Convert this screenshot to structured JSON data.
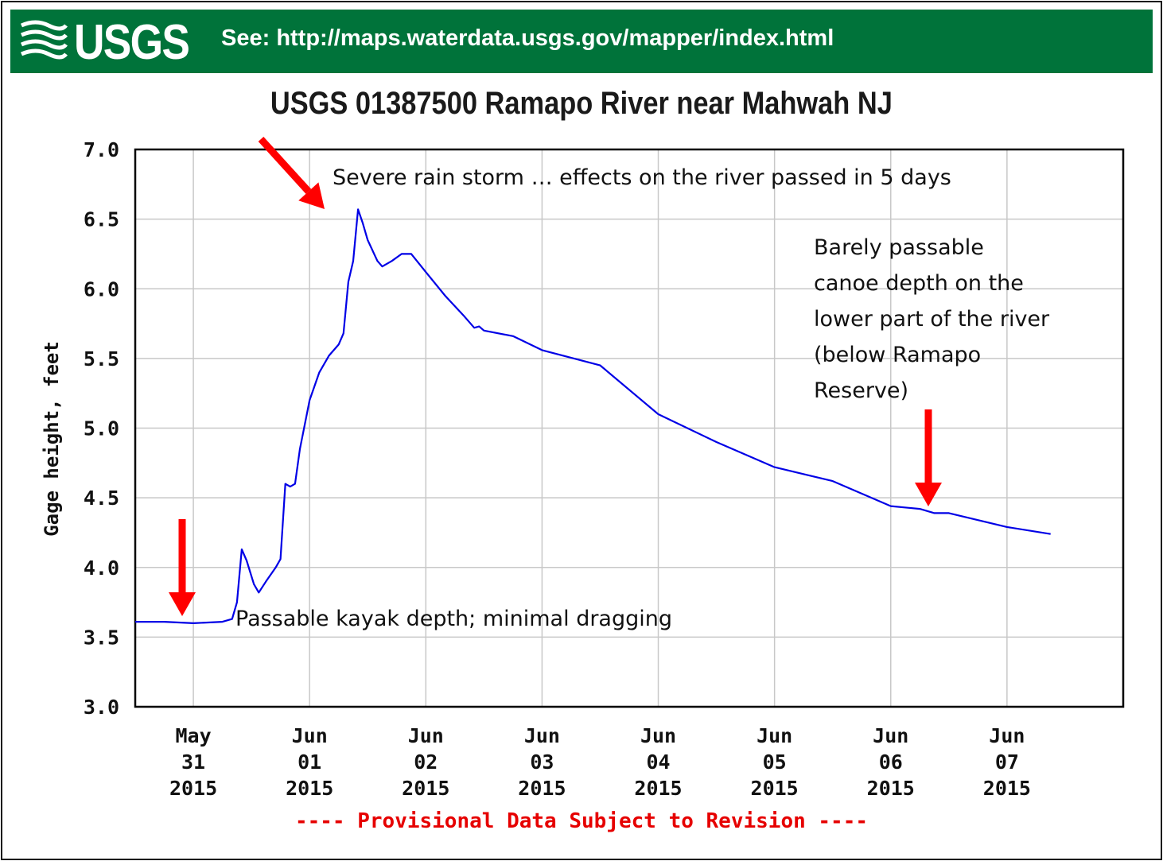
{
  "banner": {
    "logo_text": "USGS",
    "link_text": "See: http://maps.waterdata.usgs.gov/mapper/index.html",
    "background_color": "#00733a"
  },
  "annotations": {
    "storm": "Severe rain storm … effects on the river passed in 5 days",
    "kayak": "Passable kayak depth; minimal dragging",
    "canoe": "Barely passable canoe depth on the lower part of the river (below Ramapo Reserve)"
  },
  "footer": {
    "provisional": "---- Provisional Data Subject to Revision ----",
    "color": "#e60000"
  },
  "chart_data": {
    "type": "line",
    "title": "USGS 01387500 Ramapo River near Mahwah NJ",
    "xlabel": "",
    "ylabel": "Gage height, feet",
    "ylim": [
      3.0,
      7.0
    ],
    "xlim": [
      "2015-05-30T12:00",
      "2015-06-08T00:00"
    ],
    "grid": true,
    "y_ticks": [
      "3.0",
      "3.5",
      "4.0",
      "4.5",
      "5.0",
      "5.5",
      "6.0",
      "6.5",
      "7.0"
    ],
    "x_ticks": [
      {
        "date": "2015-05-31T00:00",
        "lines": [
          "May",
          "31",
          "2015"
        ]
      },
      {
        "date": "2015-06-01T00:00",
        "lines": [
          "Jun",
          "01",
          "2015"
        ]
      },
      {
        "date": "2015-06-02T00:00",
        "lines": [
          "Jun",
          "02",
          "2015"
        ]
      },
      {
        "date": "2015-06-03T00:00",
        "lines": [
          "Jun",
          "03",
          "2015"
        ]
      },
      {
        "date": "2015-06-04T00:00",
        "lines": [
          "Jun",
          "04",
          "2015"
        ]
      },
      {
        "date": "2015-06-05T00:00",
        "lines": [
          "Jun",
          "05",
          "2015"
        ]
      },
      {
        "date": "2015-06-06T00:00",
        "lines": [
          "Jun",
          "06",
          "2015"
        ]
      },
      {
        "date": "2015-06-07T00:00",
        "lines": [
          "Jun",
          "07",
          "2015"
        ]
      }
    ],
    "series": [
      {
        "color": "#0000e6",
        "points": [
          [
            "2015-05-30T12:00",
            3.61
          ],
          [
            "2015-05-30T18:00",
            3.61
          ],
          [
            "2015-05-31T00:00",
            3.6
          ],
          [
            "2015-05-31T06:00",
            3.61
          ],
          [
            "2015-05-31T08:00",
            3.63
          ],
          [
            "2015-05-31T09:00",
            3.75
          ],
          [
            "2015-05-31T10:00",
            4.13
          ],
          [
            "2015-05-31T11:00",
            4.05
          ],
          [
            "2015-05-31T12:30",
            3.88
          ],
          [
            "2015-05-31T13:30",
            3.82
          ],
          [
            "2015-05-31T15:00",
            3.9
          ],
          [
            "2015-05-31T17:00",
            4.0
          ],
          [
            "2015-05-31T18:00",
            4.06
          ],
          [
            "2015-05-31T19:00",
            4.6
          ],
          [
            "2015-05-31T20:00",
            4.58
          ],
          [
            "2015-05-31T21:00",
            4.6
          ],
          [
            "2015-05-31T22:00",
            4.85
          ],
          [
            "2015-06-01T00:00",
            5.2
          ],
          [
            "2015-06-01T02:00",
            5.4
          ],
          [
            "2015-06-01T04:00",
            5.52
          ],
          [
            "2015-06-01T06:00",
            5.6
          ],
          [
            "2015-06-01T07:00",
            5.68
          ],
          [
            "2015-06-01T08:00",
            6.05
          ],
          [
            "2015-06-01T09:00",
            6.2
          ],
          [
            "2015-06-01T10:00",
            6.57
          ],
          [
            "2015-06-01T11:00",
            6.47
          ],
          [
            "2015-06-01T12:00",
            6.35
          ],
          [
            "2015-06-01T14:00",
            6.2
          ],
          [
            "2015-06-01T15:00",
            6.16
          ],
          [
            "2015-06-01T17:00",
            6.2
          ],
          [
            "2015-06-01T19:00",
            6.25
          ],
          [
            "2015-06-01T21:00",
            6.25
          ],
          [
            "2015-06-02T00:00",
            6.12
          ],
          [
            "2015-06-02T04:00",
            5.95
          ],
          [
            "2015-06-02T08:00",
            5.8
          ],
          [
            "2015-06-02T10:00",
            5.72
          ],
          [
            "2015-06-02T11:00",
            5.73
          ],
          [
            "2015-06-02T12:00",
            5.7
          ],
          [
            "2015-06-02T18:00",
            5.66
          ],
          [
            "2015-06-03T00:00",
            5.56
          ],
          [
            "2015-06-03T12:00",
            5.45
          ],
          [
            "2015-06-04T00:00",
            5.1
          ],
          [
            "2015-06-04T12:00",
            4.9
          ],
          [
            "2015-06-05T00:00",
            4.72
          ],
          [
            "2015-06-05T12:00",
            4.62
          ],
          [
            "2015-06-06T00:00",
            4.44
          ],
          [
            "2015-06-06T06:00",
            4.42
          ],
          [
            "2015-06-06T09:00",
            4.39
          ],
          [
            "2015-06-06T12:00",
            4.39
          ],
          [
            "2015-06-07T00:00",
            4.29
          ],
          [
            "2015-06-07T09:00",
            4.24
          ]
        ]
      }
    ]
  }
}
